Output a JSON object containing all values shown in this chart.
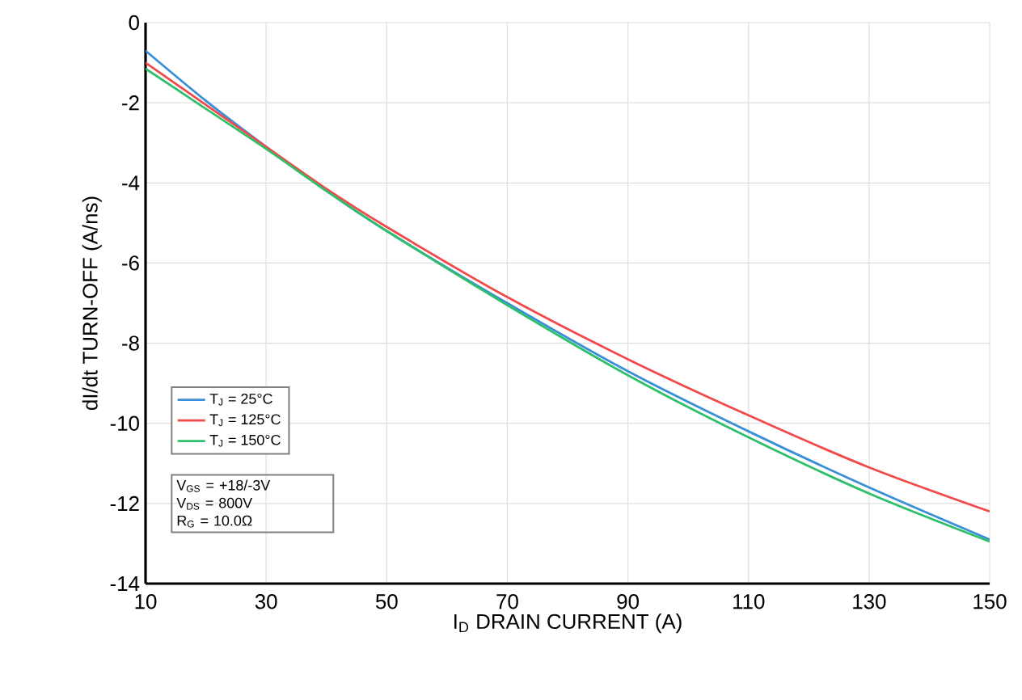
{
  "chart_data": {
    "type": "line",
    "xlabel": "I$_{D}$ DRAIN CURRENT (A)",
    "ylabel": "dI/dt TURN-OFF (A/ns)",
    "x": [
      10,
      20,
      30,
      40,
      50,
      70,
      90,
      110,
      130,
      150
    ],
    "series": [
      {
        "name": "T$_{J}$ = 25°C",
        "color": "#3a8fd8",
        "values": [
          -0.7,
          -1.95,
          -3.1,
          -4.2,
          -5.2,
          -7.0,
          -8.7,
          -10.2,
          -11.6,
          -12.9
        ]
      },
      {
        "name": "T$_{J}$ = 125°C",
        "color": "#f04a4a",
        "values": [
          -1.0,
          -2.05,
          -3.1,
          -4.15,
          -5.1,
          -6.85,
          -8.4,
          -9.8,
          -11.1,
          -12.2
        ]
      },
      {
        "name": "T$_{J}$ = 150°C",
        "color": "#2fbf6a",
        "values": [
          -1.15,
          -2.15,
          -3.15,
          -4.2,
          -5.2,
          -7.05,
          -8.8,
          -10.35,
          -11.75,
          -12.95
        ]
      }
    ],
    "xlim": [
      10,
      150
    ],
    "ylim": [
      -14,
      0
    ],
    "xticks": [
      10,
      30,
      50,
      70,
      90,
      110,
      130,
      150
    ],
    "yticks": [
      -14,
      -12,
      -10,
      -8,
      -6,
      -4,
      -2,
      0
    ],
    "grid": true,
    "legend": "bottom left",
    "marker": "none",
    "line_style": "solid",
    "annotations": [
      "V$_{GS}$ = +18/-3V",
      "V$_{DS}$ = 800V",
      "R$_{G}$ = 10.0Ω"
    ]
  }
}
